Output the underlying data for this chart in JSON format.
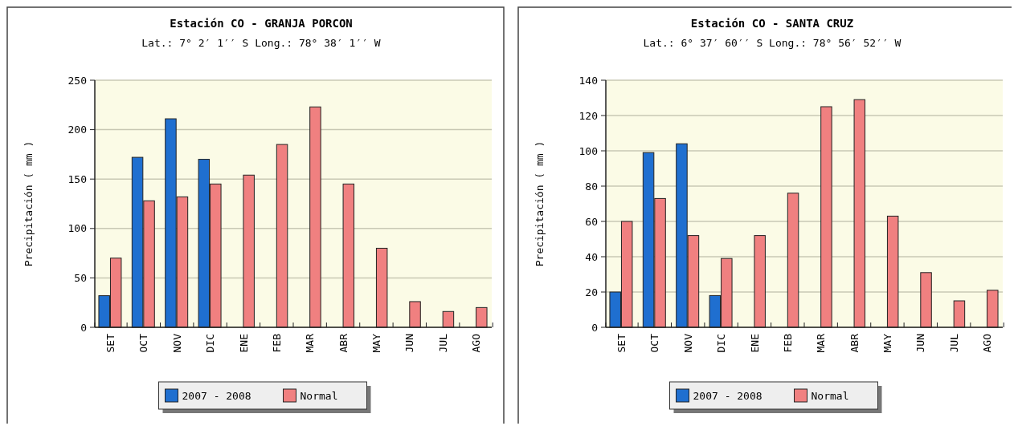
{
  "chart_data": [
    {
      "type": "bar",
      "title": "Estación CO - GRANJA PORCON",
      "subtitle": "Lat.: 7° 2′ 1′′ S  Long.: 78° 38′ 1′′ W",
      "ylabel": "Precipitación ( mm )",
      "categories": [
        "SET",
        "OCT",
        "NOV",
        "DIC",
        "ENE",
        "FEB",
        "MAR",
        "ABR",
        "MAY",
        "JUN",
        "JUL",
        "AGO"
      ],
      "series": [
        {
          "name": "2007 - 2008",
          "color": "#1f6fd0",
          "values": [
            32,
            172,
            211,
            170,
            null,
            null,
            null,
            null,
            null,
            null,
            null,
            null
          ]
        },
        {
          "name": "Normal",
          "color": "#f08080",
          "values": [
            70,
            128,
            132,
            145,
            154,
            185,
            223,
            145,
            80,
            26,
            16,
            20
          ]
        }
      ],
      "ylim": [
        0,
        250
      ],
      "yticks": [
        0,
        50,
        100,
        150,
        200,
        250
      ],
      "grid": "y",
      "legend": "bottom"
    },
    {
      "type": "bar",
      "title": "Estación CO - SANTA CRUZ",
      "subtitle": "Lat.: 6° 37′ 60′′ S  Long.: 78° 56′ 52′′ W",
      "ylabel": "Precipitación ( mm )",
      "categories": [
        "SET",
        "OCT",
        "NOV",
        "DIC",
        "ENE",
        "FEB",
        "MAR",
        "ABR",
        "MAY",
        "JUN",
        "JUL",
        "AGO"
      ],
      "series": [
        {
          "name": "2007 - 2008",
          "color": "#1f6fd0",
          "values": [
            20,
            99,
            104,
            18,
            null,
            null,
            null,
            null,
            null,
            null,
            null,
            null
          ]
        },
        {
          "name": "Normal",
          "color": "#f08080",
          "values": [
            60,
            73,
            52,
            39,
            52,
            76,
            125,
            129,
            63,
            31,
            15,
            21
          ]
        }
      ],
      "ylim": [
        0,
        140
      ],
      "yticks": [
        0,
        20,
        40,
        60,
        80,
        100,
        120,
        140
      ],
      "grid": "y",
      "legend": "bottom"
    }
  ]
}
